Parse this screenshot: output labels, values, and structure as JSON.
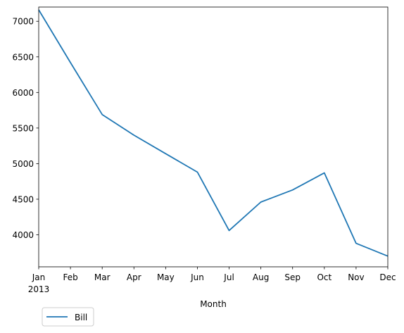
{
  "chart_data": {
    "type": "line",
    "title": "",
    "xlabel": "Month",
    "ylabel": "",
    "categories": [
      "Jan",
      "Feb",
      "Mar",
      "Apr",
      "May",
      "Jun",
      "Jul",
      "Aug",
      "Sep",
      "Oct",
      "Nov",
      "Dec"
    ],
    "x_sublabel": "2013",
    "ylim": [
      3550,
      7200
    ],
    "yticks": [
      4000,
      4500,
      5000,
      5500,
      6000,
      6500,
      7000
    ],
    "grid": false,
    "legend_position": "below-left",
    "series": [
      {
        "name": "Bill",
        "color": "#1f77b4",
        "values": [
          7160,
          6420,
          5690,
          5400,
          5140,
          4880,
          4060,
          4460,
          4630,
          4870,
          3880,
          3700
        ]
      }
    ]
  }
}
